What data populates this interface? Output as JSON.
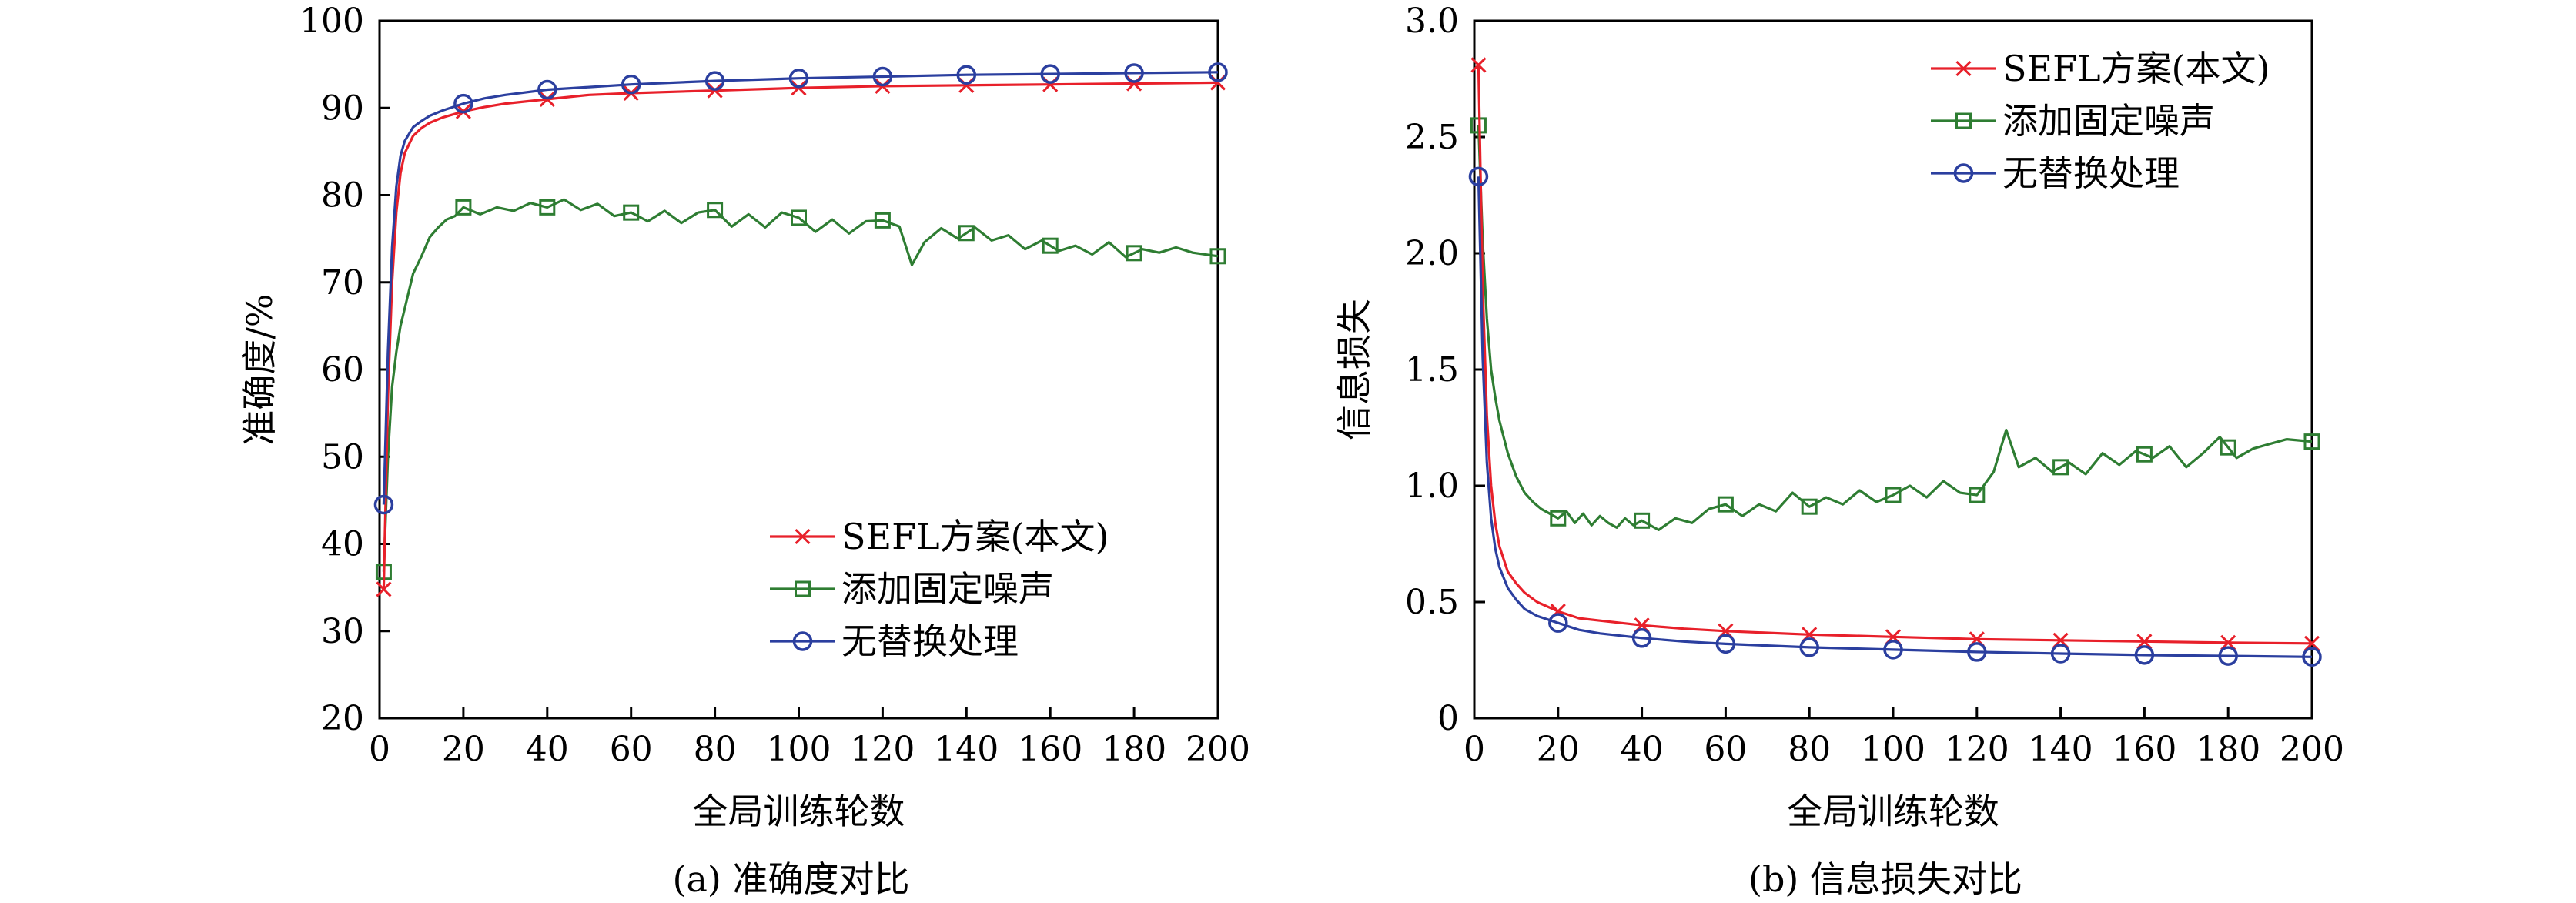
{
  "colors": {
    "sefl": "#e8202a",
    "noise": "#2e7d32",
    "noreplace": "#2b3f9f",
    "axis": "#000000"
  },
  "chart_data": [
    {
      "type": "line",
      "caption": "(a)  准确度对比",
      "xlabel": "全局训练轮数",
      "ylabel": "准确度/%",
      "xlim": [
        0,
        200
      ],
      "ylim": [
        20,
        100
      ],
      "xticks": [
        0,
        20,
        40,
        60,
        80,
        100,
        120,
        140,
        160,
        180,
        200
      ],
      "yticks": [
        20,
        30,
        40,
        50,
        60,
        70,
        80,
        90,
        100
      ],
      "legend_position": "lower-right",
      "grid": false,
      "series": [
        {
          "name": "SEFL方案(本文)",
          "color_key": "sefl",
          "marker": "x",
          "x": [
            1,
            2,
            3,
            4,
            5,
            6,
            8,
            10,
            12,
            15,
            20,
            25,
            30,
            40,
            50,
            60,
            80,
            100,
            120,
            140,
            160,
            180,
            200
          ],
          "y": [
            34.8,
            57,
            70,
            78,
            82.5,
            84.8,
            86.8,
            87.7,
            88.3,
            88.9,
            89.6,
            90.1,
            90.5,
            91.0,
            91.5,
            91.7,
            92.0,
            92.3,
            92.5,
            92.6,
            92.7,
            92.8,
            92.9
          ],
          "marker_x": [
            1,
            20,
            40,
            60,
            80,
            100,
            120,
            140,
            160,
            180,
            200
          ]
        },
        {
          "name": "添加固定噪声",
          "color_key": "noise",
          "marker": "square",
          "x": [
            1,
            2,
            3,
            4,
            5,
            6,
            8,
            10,
            12,
            14,
            16,
            18,
            20,
            24,
            28,
            32,
            36,
            40,
            44,
            48,
            52,
            56,
            60,
            64,
            68,
            72,
            76,
            80,
            84,
            88,
            92,
            96,
            100,
            104,
            108,
            112,
            116,
            120,
            124,
            127,
            130,
            134,
            138,
            142,
            146,
            150,
            154,
            158,
            162,
            166,
            170,
            174,
            178,
            182,
            186,
            190,
            194,
            200
          ],
          "y": [
            36.8,
            50,
            58,
            62,
            65,
            67,
            71,
            73,
            75.2,
            76.3,
            77.2,
            77.6,
            78.6,
            77.8,
            78.6,
            78.2,
            79.1,
            78.6,
            79.5,
            78.3,
            79.0,
            77.6,
            78.0,
            77.0,
            78.2,
            76.8,
            78.0,
            78.3,
            76.4,
            77.8,
            76.3,
            78.0,
            77.4,
            75.8,
            77.2,
            75.6,
            77.0,
            77.1,
            76.4,
            72.0,
            74.6,
            76.2,
            75.0,
            76.3,
            74.8,
            75.4,
            73.8,
            74.8,
            73.6,
            74.2,
            73.2,
            74.6,
            72.9,
            73.8,
            73.4,
            74.0,
            73.4,
            73.0
          ],
          "marker_x": [
            1,
            20,
            40,
            60,
            80,
            100,
            120,
            140,
            160,
            180,
            200
          ]
        },
        {
          "name": "无替换处理",
          "color_key": "noreplace",
          "marker": "circle",
          "x": [
            1,
            2,
            3,
            4,
            5,
            6,
            8,
            10,
            12,
            15,
            20,
            25,
            30,
            40,
            50,
            60,
            80,
            100,
            120,
            140,
            160,
            180,
            200
          ],
          "y": [
            44.5,
            62,
            74,
            81,
            84.5,
            86.2,
            87.8,
            88.5,
            89.1,
            89.7,
            90.5,
            91.1,
            91.5,
            92.1,
            92.4,
            92.7,
            93.1,
            93.4,
            93.6,
            93.8,
            93.9,
            94.0,
            94.1
          ],
          "marker_x": [
            1,
            20,
            40,
            60,
            80,
            100,
            120,
            140,
            160,
            180,
            200
          ]
        }
      ]
    },
    {
      "type": "line",
      "caption": "(b)  信息损失对比",
      "xlabel": "全局训练轮数",
      "ylabel": "信息损失",
      "xlim": [
        0,
        200
      ],
      "ylim": [
        0,
        3.0
      ],
      "xticks": [
        0,
        20,
        40,
        60,
        80,
        100,
        120,
        140,
        160,
        180,
        200
      ],
      "yticks": [
        0,
        0.5,
        1.0,
        1.5,
        2.0,
        2.5,
        3.0
      ],
      "ytick_labels": [
        "0",
        "0.5",
        "1.0",
        "1.5",
        "2.0",
        "2.5",
        "3.0"
      ],
      "legend_position": "upper-right",
      "grid": false,
      "series": [
        {
          "name": "SEFL方案(本文)",
          "color_key": "sefl",
          "marker": "x",
          "x": [
            1,
            2,
            3,
            4,
            5,
            6,
            8,
            10,
            12,
            15,
            20,
            25,
            30,
            40,
            50,
            60,
            80,
            100,
            120,
            140,
            160,
            180,
            200
          ],
          "y": [
            2.81,
            1.85,
            1.3,
            1.0,
            0.84,
            0.74,
            0.63,
            0.58,
            0.54,
            0.5,
            0.46,
            0.43,
            0.42,
            0.4,
            0.385,
            0.375,
            0.36,
            0.35,
            0.34,
            0.335,
            0.33,
            0.325,
            0.322
          ],
          "marker_x": [
            1,
            20,
            40,
            60,
            80,
            100,
            120,
            140,
            160,
            180,
            200
          ]
        },
        {
          "name": "添加固定噪声",
          "color_key": "noise",
          "marker": "square",
          "x": [
            1,
            2,
            3,
            4,
            5,
            6,
            8,
            10,
            12,
            14,
            16,
            18,
            20,
            22,
            24,
            26,
            28,
            30,
            32,
            34,
            36,
            38,
            40,
            44,
            48,
            52,
            56,
            60,
            64,
            68,
            72,
            76,
            80,
            84,
            88,
            92,
            96,
            100,
            104,
            108,
            112,
            116,
            120,
            124,
            127,
            130,
            134,
            138,
            142,
            146,
            150,
            154,
            158,
            162,
            166,
            170,
            174,
            178,
            182,
            186,
            190,
            194,
            200
          ],
          "y": [
            2.55,
            2.05,
            1.72,
            1.5,
            1.38,
            1.28,
            1.14,
            1.04,
            0.97,
            0.93,
            0.9,
            0.88,
            0.86,
            0.89,
            0.84,
            0.88,
            0.83,
            0.87,
            0.84,
            0.82,
            0.86,
            0.83,
            0.85,
            0.81,
            0.86,
            0.84,
            0.9,
            0.92,
            0.87,
            0.92,
            0.89,
            0.97,
            0.91,
            0.95,
            0.92,
            0.98,
            0.93,
            0.96,
            1.0,
            0.95,
            1.02,
            0.97,
            0.96,
            1.06,
            1.24,
            1.08,
            1.12,
            1.06,
            1.1,
            1.05,
            1.14,
            1.09,
            1.15,
            1.12,
            1.17,
            1.08,
            1.14,
            1.21,
            1.12,
            1.16,
            1.18,
            1.2,
            1.19
          ],
          "marker_x": [
            1,
            20,
            40,
            60,
            80,
            100,
            120,
            140,
            160,
            180,
            200
          ]
        },
        {
          "name": "无替换处理",
          "color_key": "noreplace",
          "marker": "circle",
          "x": [
            1,
            2,
            3,
            4,
            5,
            6,
            8,
            10,
            12,
            15,
            20,
            25,
            30,
            40,
            50,
            60,
            80,
            100,
            120,
            140,
            160,
            180,
            200
          ],
          "y": [
            2.33,
            1.55,
            1.1,
            0.86,
            0.73,
            0.65,
            0.56,
            0.51,
            0.47,
            0.44,
            0.41,
            0.38,
            0.365,
            0.345,
            0.33,
            0.32,
            0.305,
            0.295,
            0.285,
            0.278,
            0.272,
            0.268,
            0.264
          ],
          "marker_x": [
            1,
            20,
            40,
            60,
            80,
            100,
            120,
            140,
            160,
            180,
            200
          ]
        }
      ]
    }
  ]
}
